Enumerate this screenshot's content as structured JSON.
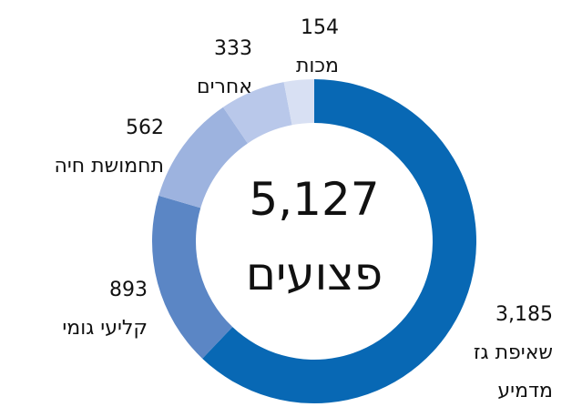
{
  "chart_data": {
    "type": "donut",
    "annotation": "5,127",
    "center_label": "פצועים",
    "categories": [
      "שאיפת גז\nמדמיע",
      "קליעי גומי",
      "תחמושת חיה",
      "אחרים",
      "מכות"
    ],
    "values": [
      3185,
      893,
      562,
      333,
      154
    ],
    "value_labels": [
      "3,185",
      "893",
      "562",
      "333",
      "154"
    ],
    "colors": [
      "#0868b4",
      "#5b86c5",
      "#9db3df",
      "#b9c8ea",
      "#d8e0f3"
    ]
  }
}
